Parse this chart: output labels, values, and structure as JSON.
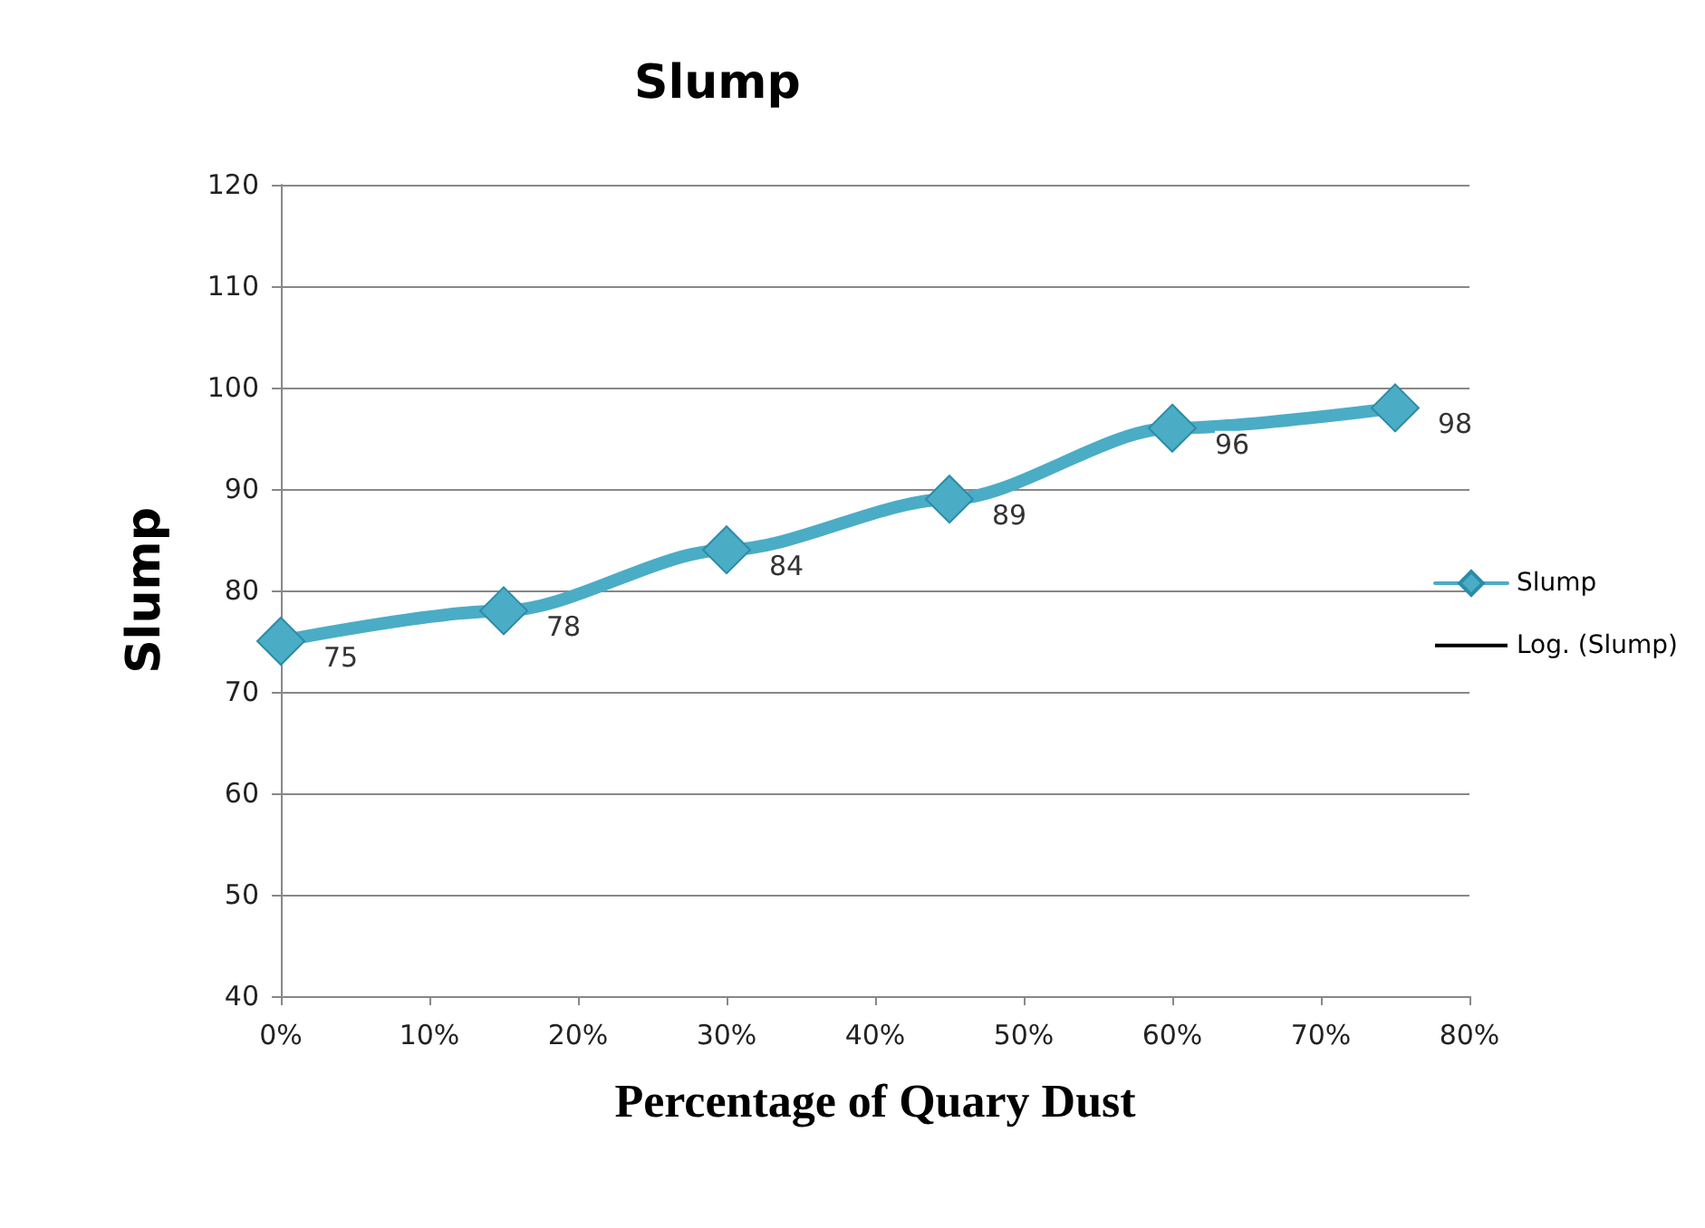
{
  "chart_data": {
    "type": "line",
    "title": "Slump",
    "xlabel": "Percentage of Quary Dust",
    "ylabel": "Slump",
    "x": [
      0,
      15,
      30,
      45,
      60,
      75
    ],
    "series": [
      {
        "name": "Slump",
        "color": "#4bacc6",
        "values": [
          75,
          78,
          84,
          89,
          96,
          98
        ]
      },
      {
        "name": "Log. (Slump)",
        "color": "#000000",
        "marker": "none",
        "values": [
          null,
          null,
          null,
          null,
          null,
          null
        ]
      }
    ],
    "xlim": [
      0,
      80
    ],
    "xticks": [
      {
        "value": 0,
        "label": "0%"
      },
      {
        "value": 10,
        "label": "10%"
      },
      {
        "value": 20,
        "label": "20%"
      },
      {
        "value": 30,
        "label": "30%"
      },
      {
        "value": 40,
        "label": "40%"
      },
      {
        "value": 50,
        "label": "50%"
      },
      {
        "value": 60,
        "label": "60%"
      },
      {
        "value": 70,
        "label": "70%"
      },
      {
        "value": 80,
        "label": "80%"
      }
    ],
    "ylim": [
      40,
      120
    ],
    "yticks": [
      40,
      50,
      60,
      70,
      80,
      90,
      100,
      110,
      120
    ],
    "grid": "y",
    "legend": "right",
    "marker": "diamond",
    "data_labels": true
  }
}
